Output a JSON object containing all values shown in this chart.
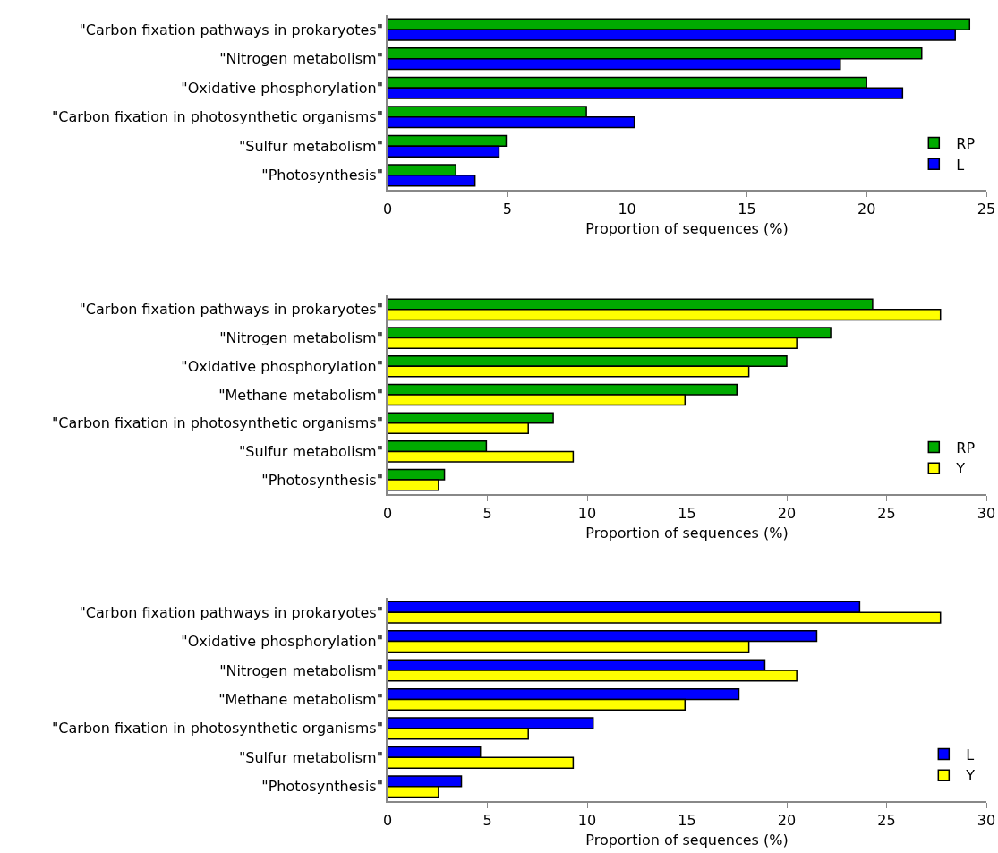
{
  "chart_data": [
    {
      "type": "bar",
      "orientation": "horizontal",
      "categories": [
        "\"Carbon fixation pathways in prokaryotes\"",
        "\"Nitrogen metabolism\"",
        "\"Oxidative phosphorylation\"",
        "\"Carbon fixation in photosynthetic organisms\"",
        "\"Sulfur metabolism\"",
        "\"Photosynthesis\""
      ],
      "series": [
        {
          "name": "RP",
          "color": "#00aa00",
          "values": [
            24.3,
            22.3,
            20.0,
            8.3,
            4.95,
            2.85
          ]
        },
        {
          "name": "L",
          "color": "#0000ff",
          "values": [
            23.7,
            18.9,
            21.5,
            10.3,
            4.65,
            3.65
          ]
        }
      ],
      "xlim": [
        0,
        25
      ],
      "xticks": [
        0,
        5,
        10,
        15,
        20,
        25
      ],
      "xlabel": "Proportion of sequences (%)",
      "legend": "bottom right"
    },
    {
      "type": "bar",
      "orientation": "horizontal",
      "categories": [
        "\"Carbon fixation pathways in prokaryotes\"",
        "\"Nitrogen metabolism\"",
        "\"Oxidative phosphorylation\"",
        "\"Methane metabolism\"",
        "\"Carbon fixation in photosynthetic organisms\"",
        "\"Sulfur metabolism\"",
        "\"Photosynthesis\""
      ],
      "series": [
        {
          "name": "RP",
          "color": "#00aa00",
          "values": [
            24.3,
            22.2,
            20.0,
            17.5,
            8.3,
            4.95,
            2.85
          ]
        },
        {
          "name": "Y",
          "color": "#ffff00",
          "values": [
            27.7,
            20.5,
            18.1,
            14.9,
            7.05,
            9.3,
            2.55
          ]
        }
      ],
      "xlim": [
        0,
        30
      ],
      "xticks": [
        0,
        5,
        10,
        15,
        20,
        25,
        30
      ],
      "xlabel": "Proportion of sequences (%)",
      "legend": "bottom right"
    },
    {
      "type": "bar",
      "orientation": "horizontal",
      "categories": [
        "\"Carbon fixation pathways in prokaryotes\"",
        "\"Oxidative phosphorylation\"",
        "\"Nitrogen metabolism\"",
        "\"Methane metabolism\"",
        "\"Carbon fixation in photosynthetic organisms\"",
        "\"Sulfur metabolism\"",
        "\"Photosynthesis\""
      ],
      "series": [
        {
          "name": "L",
          "color": "#0000ff",
          "values": [
            23.65,
            21.5,
            18.9,
            17.6,
            10.3,
            4.65,
            3.7
          ]
        },
        {
          "name": "Y",
          "color": "#ffff00",
          "values": [
            27.7,
            18.1,
            20.5,
            14.9,
            7.05,
            9.3,
            2.55
          ]
        }
      ],
      "xlim": [
        0,
        30
      ],
      "xticks": [
        0,
        5,
        10,
        15,
        20,
        25,
        30
      ],
      "xlabel": "Proportion of sequences (%)",
      "legend": "bottom right"
    }
  ]
}
